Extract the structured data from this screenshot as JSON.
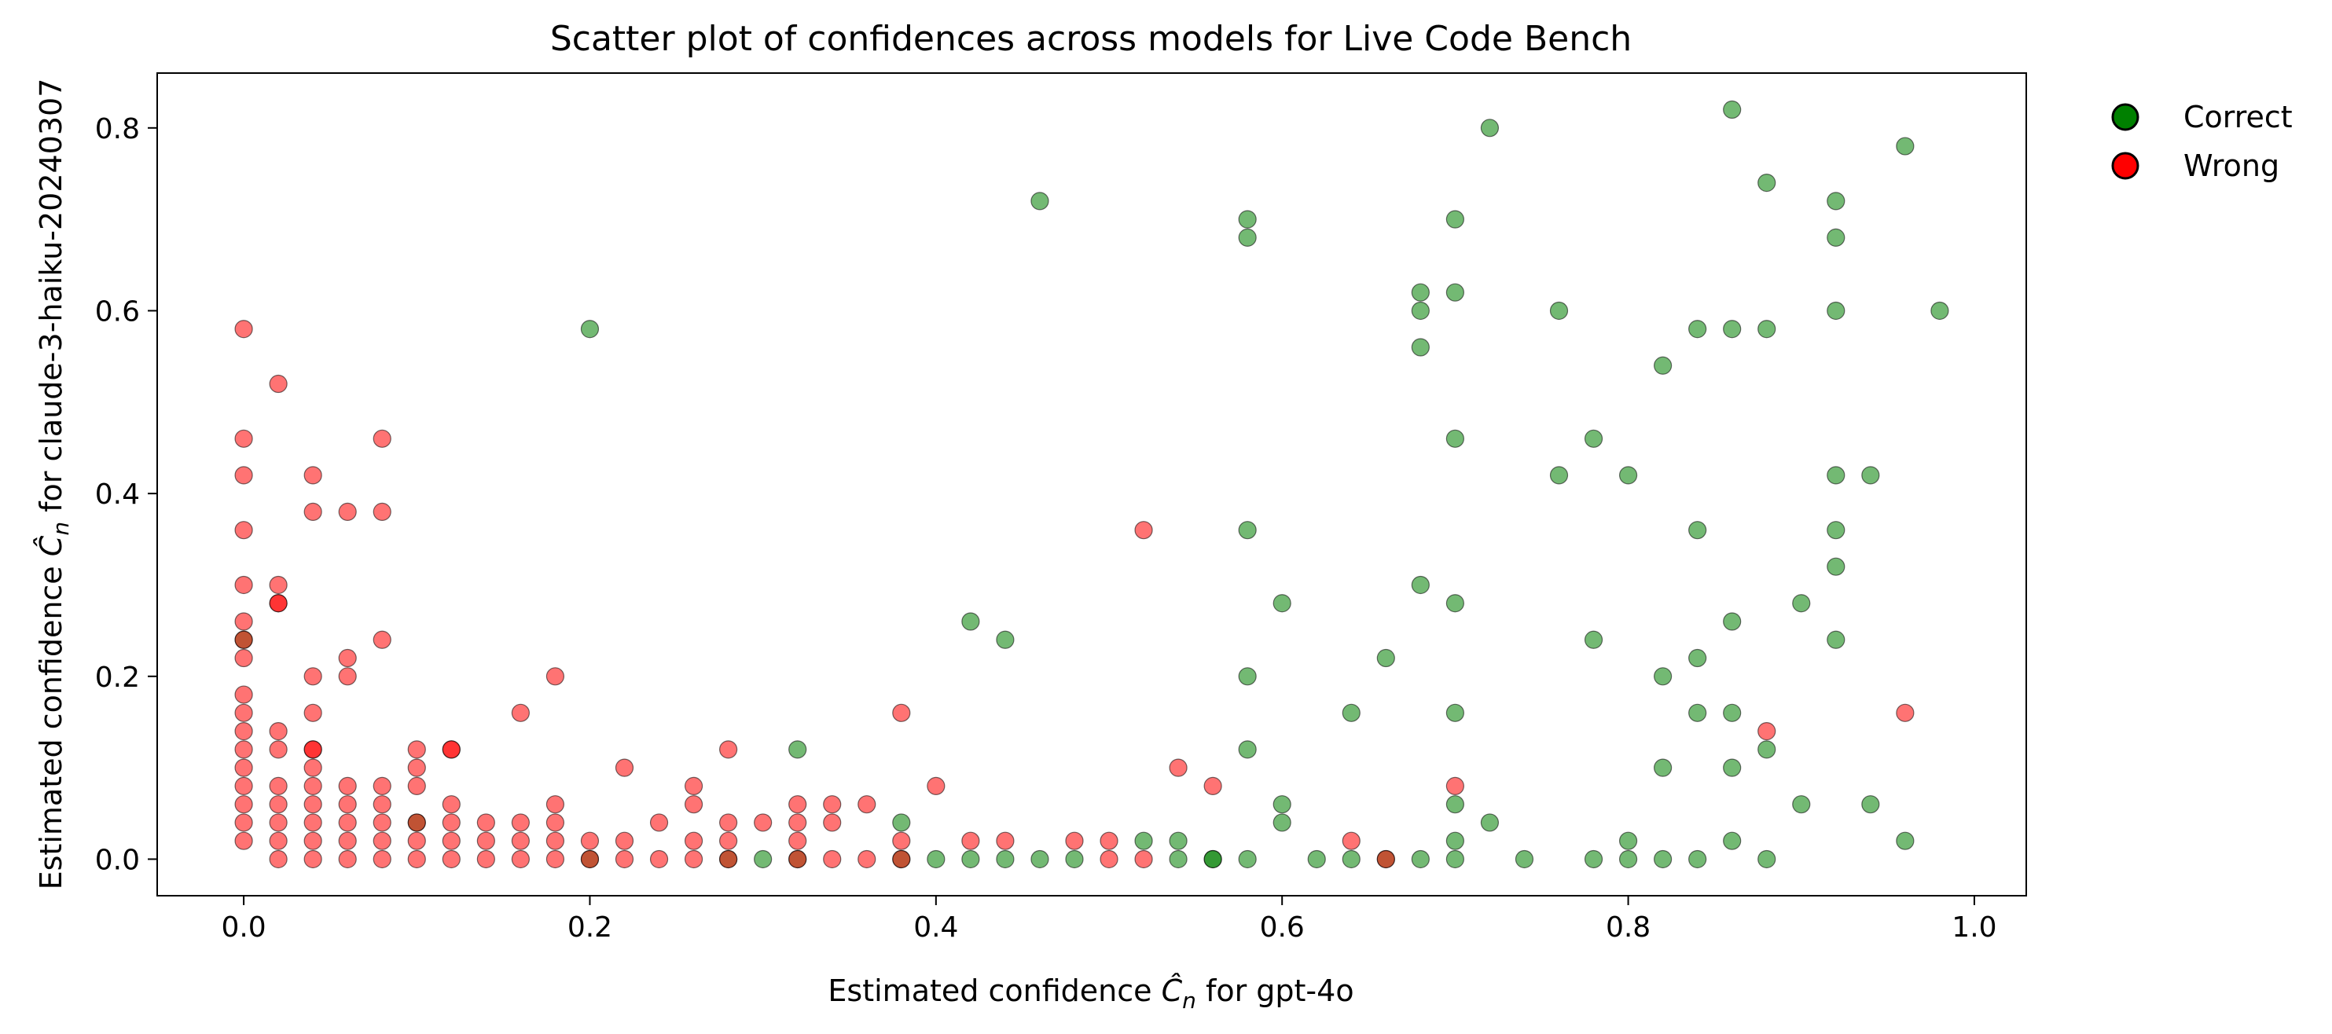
{
  "chart_data": {
    "type": "scatter",
    "title": "Scatter plot of confidences across models for Live Code Bench",
    "xlabel": {
      "prefix": "Estimated confidence ",
      "symbol": "Ĉ",
      "subscript": "n",
      "suffix": " for gpt-4o"
    },
    "ylabel": {
      "prefix": "Estimated confidence ",
      "symbol": "Ĉ",
      "subscript": "n",
      "suffix": " for claude-3-haiku-20240307"
    },
    "xlim": [
      -0.05,
      1.03
    ],
    "ylim": [
      -0.04,
      0.86
    ],
    "x_ticks": [
      0.0,
      0.2,
      0.4,
      0.6,
      0.8,
      1.0
    ],
    "x_tick_labels": [
      "0.0",
      "0.2",
      "0.4",
      "0.6",
      "0.8",
      "1.0"
    ],
    "y_ticks": [
      0.0,
      0.2,
      0.4,
      0.6,
      0.8
    ],
    "y_tick_labels": [
      "0.0",
      "0.2",
      "0.4",
      "0.6",
      "0.8"
    ],
    "legend_position": "outside-top-right",
    "marker_alpha": 0.55,
    "series": [
      {
        "name": "Correct",
        "color": "#008000",
        "points": [
          [
            0.46,
            0.72
          ],
          [
            0.58,
            0.7
          ],
          [
            0.58,
            0.68
          ],
          [
            0.68,
            0.62
          ],
          [
            0.68,
            0.6
          ],
          [
            0.68,
            0.56
          ],
          [
            0.7,
            0.7
          ],
          [
            0.7,
            0.62
          ],
          [
            0.72,
            0.8
          ],
          [
            0.76,
            0.6
          ],
          [
            0.86,
            0.82
          ],
          [
            0.88,
            0.74
          ],
          [
            0.92,
            0.72
          ],
          [
            0.92,
            0.68
          ],
          [
            0.96,
            0.78
          ],
          [
            0.98,
            0.6
          ],
          [
            0.92,
            0.6
          ],
          [
            0.84,
            0.58
          ],
          [
            0.86,
            0.58
          ],
          [
            0.88,
            0.58
          ],
          [
            0.82,
            0.54
          ],
          [
            0.2,
            0.58
          ],
          [
            0.7,
            0.46
          ],
          [
            0.76,
            0.42
          ],
          [
            0.78,
            0.46
          ],
          [
            0.8,
            0.42
          ],
          [
            0.92,
            0.42
          ],
          [
            0.94,
            0.42
          ],
          [
            0.58,
            0.36
          ],
          [
            0.84,
            0.36
          ],
          [
            0.92,
            0.36
          ],
          [
            0.92,
            0.32
          ],
          [
            0.68,
            0.3
          ],
          [
            0.7,
            0.28
          ],
          [
            0.6,
            0.28
          ],
          [
            0.9,
            0.28
          ],
          [
            0.42,
            0.26
          ],
          [
            0.44,
            0.24
          ],
          [
            0.78,
            0.24
          ],
          [
            0.86,
            0.26
          ],
          [
            0.92,
            0.24
          ],
          [
            0.84,
            0.22
          ],
          [
            0.66,
            0.22
          ],
          [
            0.58,
            0.2
          ],
          [
            0.82,
            0.2
          ],
          [
            0.7,
            0.16
          ],
          [
            0.64,
            0.16
          ],
          [
            0.84,
            0.16
          ],
          [
            0.86,
            0.16
          ],
          [
            0.32,
            0.12
          ],
          [
            0.58,
            0.12
          ],
          [
            0.88,
            0.12
          ],
          [
            0.82,
            0.1
          ],
          [
            0.86,
            0.1
          ],
          [
            0.6,
            0.06
          ],
          [
            0.6,
            0.04
          ],
          [
            0.7,
            0.06
          ],
          [
            0.9,
            0.06
          ],
          [
            0.94,
            0.06
          ],
          [
            0.38,
            0.04
          ],
          [
            0.72,
            0.04
          ],
          [
            0.52,
            0.02
          ],
          [
            0.54,
            0.02
          ],
          [
            0.7,
            0.02
          ],
          [
            0.8,
            0.02
          ],
          [
            0.86,
            0.02
          ],
          [
            0.96,
            0.02
          ],
          [
            0.3,
            0.0
          ],
          [
            0.4,
            0.0
          ],
          [
            0.42,
            0.0
          ],
          [
            0.44,
            0.0
          ],
          [
            0.46,
            0.0
          ],
          [
            0.48,
            0.0
          ],
          [
            0.54,
            0.0
          ],
          [
            0.56,
            0.0
          ],
          [
            0.58,
            0.0
          ],
          [
            0.62,
            0.0
          ],
          [
            0.64,
            0.0
          ],
          [
            0.68,
            0.0
          ],
          [
            0.7,
            0.0
          ],
          [
            0.74,
            0.0
          ],
          [
            0.78,
            0.0
          ],
          [
            0.8,
            0.0
          ],
          [
            0.82,
            0.0
          ],
          [
            0.84,
            0.0
          ],
          [
            0.88,
            0.0
          ],
          [
            0.0,
            0.24
          ],
          [
            0.1,
            0.04
          ],
          [
            0.2,
            0.0
          ],
          [
            0.28,
            0.0
          ],
          [
            0.32,
            0.0
          ],
          [
            0.38,
            0.0
          ],
          [
            0.56,
            0.0
          ],
          [
            0.66,
            0.0
          ]
        ]
      },
      {
        "name": "Wrong",
        "color": "#ff0000",
        "points": [
          [
            0.0,
            0.58
          ],
          [
            0.0,
            0.46
          ],
          [
            0.0,
            0.42
          ],
          [
            0.0,
            0.36
          ],
          [
            0.0,
            0.3
          ],
          [
            0.0,
            0.26
          ],
          [
            0.0,
            0.24
          ],
          [
            0.0,
            0.22
          ],
          [
            0.0,
            0.18
          ],
          [
            0.0,
            0.16
          ],
          [
            0.0,
            0.14
          ],
          [
            0.0,
            0.12
          ],
          [
            0.0,
            0.1
          ],
          [
            0.0,
            0.08
          ],
          [
            0.0,
            0.06
          ],
          [
            0.0,
            0.04
          ],
          [
            0.0,
            0.02
          ],
          [
            0.02,
            0.52
          ],
          [
            0.02,
            0.3
          ],
          [
            0.02,
            0.28
          ],
          [
            0.02,
            0.28
          ],
          [
            0.02,
            0.14
          ],
          [
            0.02,
            0.12
          ],
          [
            0.02,
            0.08
          ],
          [
            0.02,
            0.06
          ],
          [
            0.02,
            0.04
          ],
          [
            0.02,
            0.02
          ],
          [
            0.02,
            0.0
          ],
          [
            0.04,
            0.42
          ],
          [
            0.04,
            0.38
          ],
          [
            0.04,
            0.2
          ],
          [
            0.04,
            0.16
          ],
          [
            0.04,
            0.12
          ],
          [
            0.04,
            0.12
          ],
          [
            0.04,
            0.1
          ],
          [
            0.04,
            0.08
          ],
          [
            0.04,
            0.06
          ],
          [
            0.04,
            0.04
          ],
          [
            0.04,
            0.02
          ],
          [
            0.04,
            0.0
          ],
          [
            0.06,
            0.38
          ],
          [
            0.06,
            0.22
          ],
          [
            0.06,
            0.2
          ],
          [
            0.06,
            0.08
          ],
          [
            0.06,
            0.06
          ],
          [
            0.06,
            0.04
          ],
          [
            0.06,
            0.02
          ],
          [
            0.06,
            0.0
          ],
          [
            0.08,
            0.46
          ],
          [
            0.08,
            0.38
          ],
          [
            0.08,
            0.24
          ],
          [
            0.08,
            0.08
          ],
          [
            0.08,
            0.06
          ],
          [
            0.08,
            0.04
          ],
          [
            0.08,
            0.02
          ],
          [
            0.08,
            0.0
          ],
          [
            0.1,
            0.12
          ],
          [
            0.1,
            0.1
          ],
          [
            0.1,
            0.08
          ],
          [
            0.1,
            0.04
          ],
          [
            0.1,
            0.02
          ],
          [
            0.1,
            0.0
          ],
          [
            0.12,
            0.12
          ],
          [
            0.12,
            0.12
          ],
          [
            0.12,
            0.06
          ],
          [
            0.12,
            0.04
          ],
          [
            0.12,
            0.02
          ],
          [
            0.12,
            0.0
          ],
          [
            0.14,
            0.04
          ],
          [
            0.14,
            0.02
          ],
          [
            0.14,
            0.0
          ],
          [
            0.16,
            0.16
          ],
          [
            0.16,
            0.04
          ],
          [
            0.16,
            0.02
          ],
          [
            0.16,
            0.0
          ],
          [
            0.18,
            0.2
          ],
          [
            0.18,
            0.06
          ],
          [
            0.18,
            0.04
          ],
          [
            0.18,
            0.02
          ],
          [
            0.18,
            0.0
          ],
          [
            0.2,
            0.02
          ],
          [
            0.2,
            0.0
          ],
          [
            0.22,
            0.1
          ],
          [
            0.22,
            0.02
          ],
          [
            0.22,
            0.0
          ],
          [
            0.24,
            0.04
          ],
          [
            0.24,
            0.0
          ],
          [
            0.26,
            0.08
          ],
          [
            0.26,
            0.06
          ],
          [
            0.26,
            0.02
          ],
          [
            0.26,
            0.0
          ],
          [
            0.28,
            0.12
          ],
          [
            0.28,
            0.04
          ],
          [
            0.28,
            0.02
          ],
          [
            0.28,
            0.0
          ],
          [
            0.3,
            0.04
          ],
          [
            0.32,
            0.06
          ],
          [
            0.32,
            0.04
          ],
          [
            0.32,
            0.02
          ],
          [
            0.32,
            0.0
          ],
          [
            0.34,
            0.06
          ],
          [
            0.34,
            0.04
          ],
          [
            0.34,
            0.0
          ],
          [
            0.36,
            0.06
          ],
          [
            0.36,
            0.0
          ],
          [
            0.38,
            0.16
          ],
          [
            0.38,
            0.02
          ],
          [
            0.38,
            0.0
          ],
          [
            0.4,
            0.08
          ],
          [
            0.42,
            0.02
          ],
          [
            0.44,
            0.02
          ],
          [
            0.48,
            0.02
          ],
          [
            0.5,
            0.02
          ],
          [
            0.5,
            0.0
          ],
          [
            0.52,
            0.36
          ],
          [
            0.52,
            0.0
          ],
          [
            0.54,
            0.1
          ],
          [
            0.56,
            0.08
          ],
          [
            0.64,
            0.02
          ],
          [
            0.66,
            0.0
          ],
          [
            0.7,
            0.08
          ],
          [
            0.88,
            0.14
          ],
          [
            0.96,
            0.16
          ]
        ]
      }
    ]
  }
}
